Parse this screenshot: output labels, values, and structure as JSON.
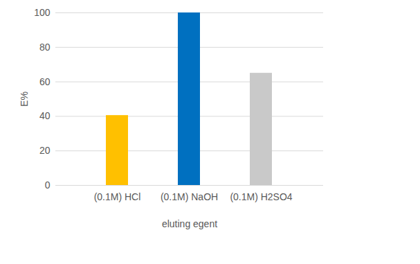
{
  "chart_data": {
    "type": "bar",
    "categories": [
      "(0.1M) HCl",
      "(0.1M) NaOH",
      "(0.1M) H2SO4"
    ],
    "values": [
      40.5,
      100,
      65
    ],
    "colors": [
      "#ffc000",
      "#0070c0",
      "#c9c9c9"
    ],
    "x_label": "eluting egent",
    "y_label": "E%",
    "ylim": [
      0,
      100
    ],
    "yticks": [
      0,
      20,
      40,
      60,
      80,
      100
    ],
    "grid": true
  }
}
